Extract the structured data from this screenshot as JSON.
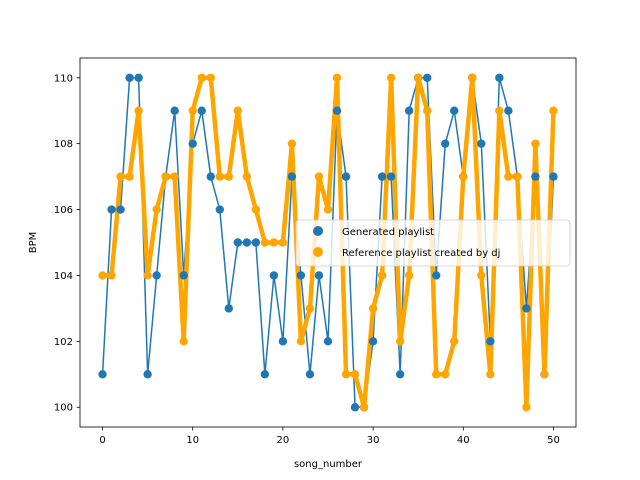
{
  "chart_data": {
    "type": "line",
    "title": "",
    "xlabel": "song_number",
    "ylabel": "BPM",
    "xlim": [
      -2.5,
      52.5
    ],
    "ylim": [
      99.4,
      110.6
    ],
    "xticks": [
      0,
      10,
      20,
      30,
      40,
      50
    ],
    "yticks": [
      100,
      102,
      104,
      106,
      108,
      110
    ],
    "grid": false,
    "legend_position": "center-right",
    "series": [
      {
        "name": "Generated playlist",
        "color": "#1f77b4",
        "values": [
          101,
          106,
          106,
          110,
          110,
          101,
          104,
          107,
          109,
          104,
          108,
          109,
          107,
          106,
          103,
          105,
          105,
          105,
          101,
          104,
          102,
          107,
          104,
          101,
          104,
          102,
          109,
          107,
          100,
          100,
          102,
          107,
          107,
          101,
          109,
          110,
          110,
          104,
          108,
          109,
          107,
          110,
          108,
          102,
          110,
          109,
          107,
          103,
          107,
          101,
          107
        ]
      },
      {
        "name": "Reference playlist created by dj",
        "color": "#ffa500",
        "values": [
          104,
          104,
          107,
          107,
          109,
          104,
          106,
          107,
          107,
          102,
          109,
          110,
          110,
          107,
          107,
          109,
          107,
          106,
          105,
          105,
          105,
          108,
          102,
          103,
          107,
          106,
          110,
          101,
          101,
          100,
          103,
          104,
          110,
          102,
          104,
          110,
          109,
          101,
          101,
          102,
          107,
          110,
          104,
          101,
          109,
          107,
          107,
          100,
          108,
          101,
          109
        ]
      }
    ]
  }
}
